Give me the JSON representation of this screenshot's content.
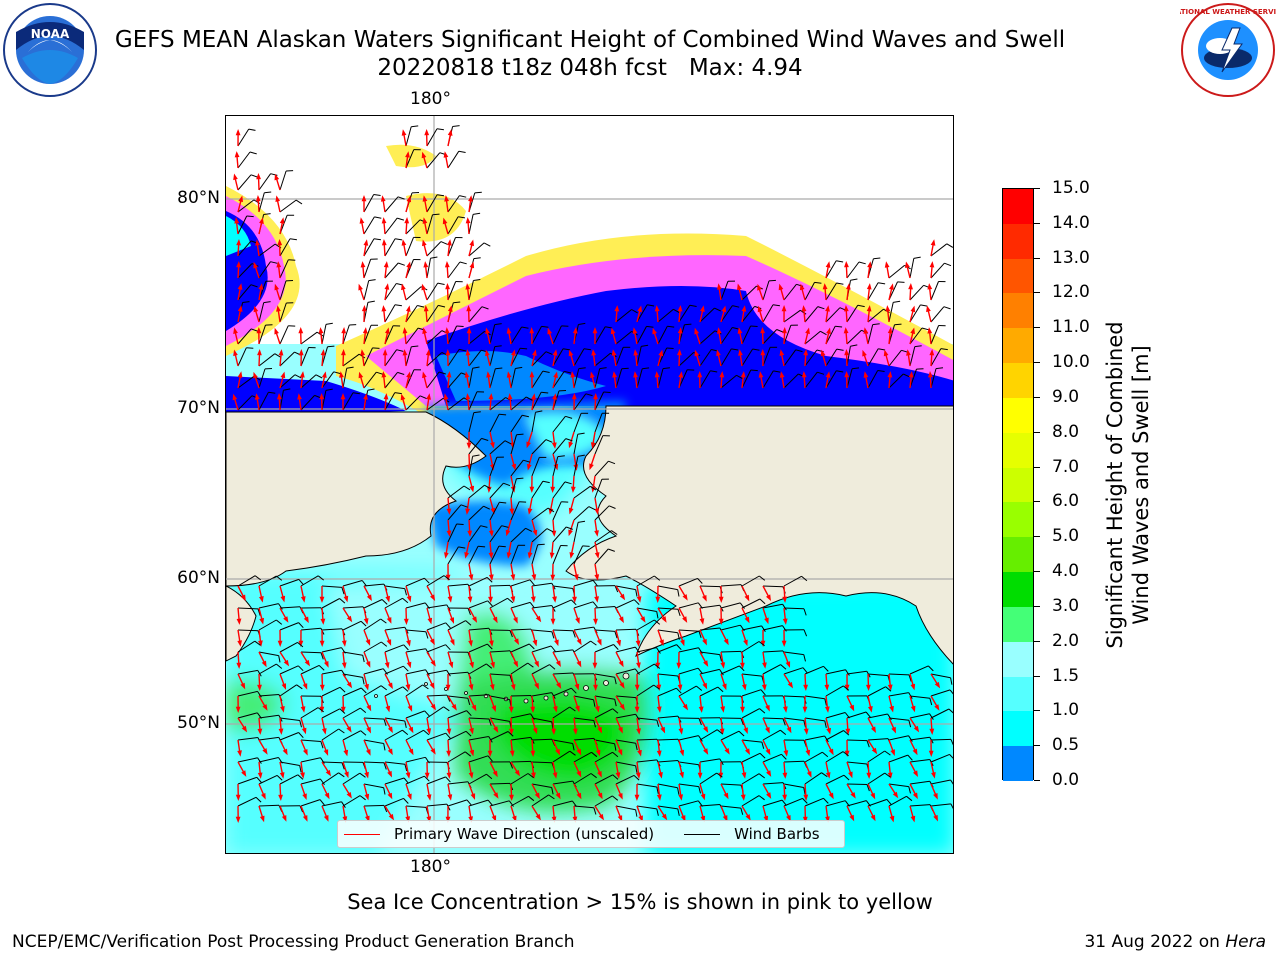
{
  "title": {
    "line1": "GEFS MEAN Alaskan Waters Significant Height of Combined Wind Waves and Swell",
    "line2": "20220818 t18z 048h fcst   Max: 4.94"
  },
  "logos": {
    "noaa": {
      "text": "NOAA",
      "icon": "noaa-seal-icon"
    },
    "nws": {
      "text": "NATIONAL WEATHER SERVICE",
      "icon": "nws-seal-icon"
    }
  },
  "map": {
    "lon_labels": {
      "top": "180°",
      "bottom": "180°"
    },
    "lat_labels": [
      "80°N",
      "70°N",
      "60°N",
      "50°N"
    ],
    "colors": {
      "land": "#efecdc",
      "ice_pink": "#ff66ff",
      "ice_yellow": "#ffee55",
      "wave_arrow": "#ff0000",
      "wind_barb": "#000000"
    }
  },
  "legend": {
    "wave_label": "Primary Wave Direction (unscaled)",
    "barb_label": "Wind Barbs"
  },
  "colorbar": {
    "title_line1": "Significant Height of Combined",
    "title_line2": "Wind Waves and Swell [m]",
    "ticks": [
      "15.0",
      "14.0",
      "13.0",
      "12.0",
      "11.0",
      "10.0",
      "9.0",
      "8.0",
      "7.0",
      "6.0",
      "5.0",
      "4.0",
      "3.0",
      "2.0",
      "1.5",
      "1.0",
      "0.5",
      "0.0"
    ],
    "colors": [
      "#ff0000",
      "#ff2a00",
      "#ff5500",
      "#ff8000",
      "#ffaa00",
      "#ffd400",
      "#ffff00",
      "#e6ff00",
      "#ccff00",
      "#99ff00",
      "#66ee00",
      "#00dd00",
      "#44ff77",
      "#99ffff",
      "#55ffff",
      "#00ffff",
      "#0088ff",
      "#0000ff"
    ]
  },
  "caption": "Sea Ice Concentration > 15% is shown in pink to yellow",
  "footer": {
    "left": "NCEP/EMC/Verification Post Processing Product Generation Branch",
    "right_date": "31 Aug 2022 on ",
    "right_host": "Hera"
  }
}
